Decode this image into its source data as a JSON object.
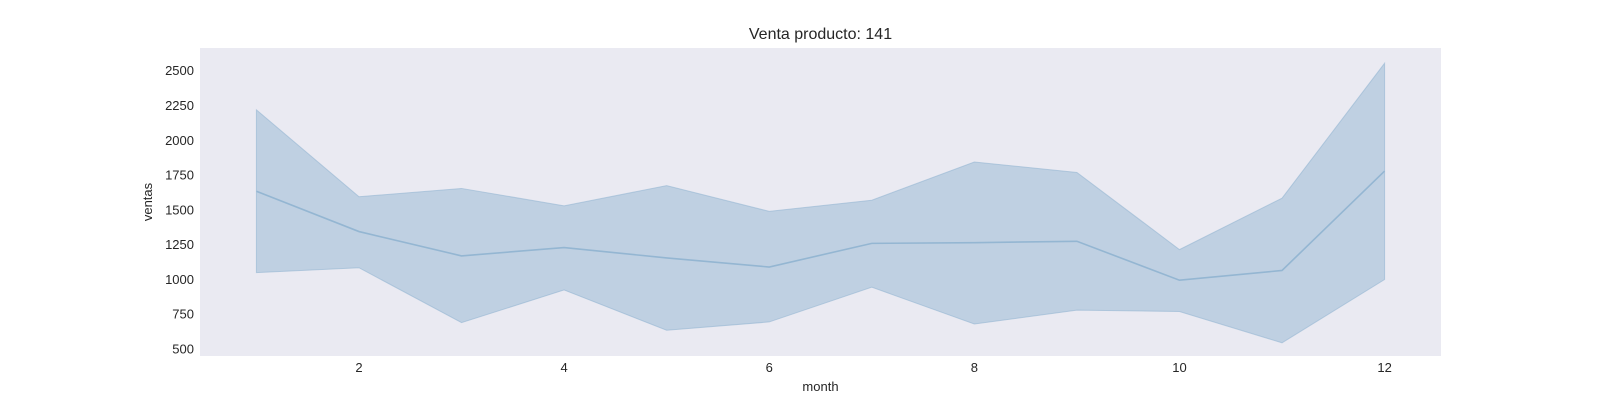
{
  "chart_data": {
    "type": "line",
    "title": "Venta producto: 141",
    "xlabel": "month",
    "ylabel": "ventas",
    "x": [
      1,
      2,
      3,
      4,
      5,
      6,
      7,
      8,
      9,
      10,
      11,
      12
    ],
    "series": [
      {
        "name": "ventas",
        "values": [
          1630,
          1340,
          1165,
          1225,
          1150,
          1085,
          1255,
          1260,
          1270,
          990,
          1060,
          1775
        ],
        "ci_lower": [
          1045,
          1080,
          685,
          920,
          630,
          690,
          940,
          675,
          775,
          765,
          540,
          995
        ],
        "ci_upper": [
          2215,
          1590,
          1650,
          1525,
          1670,
          1485,
          1565,
          1840,
          1765,
          1210,
          1580,
          2550
        ]
      }
    ],
    "xticks": [
      2,
      4,
      6,
      8,
      10,
      12
    ],
    "yticks": [
      500,
      750,
      1000,
      1250,
      1500,
      1750,
      2000,
      2250,
      2500
    ],
    "xlim": [
      0.45,
      12.55
    ],
    "ylim": [
      445,
      2660
    ],
    "grid": false,
    "colors": {
      "background": "#eaeaf2",
      "line": "#94b6d2",
      "band": "#94b6d2"
    }
  }
}
